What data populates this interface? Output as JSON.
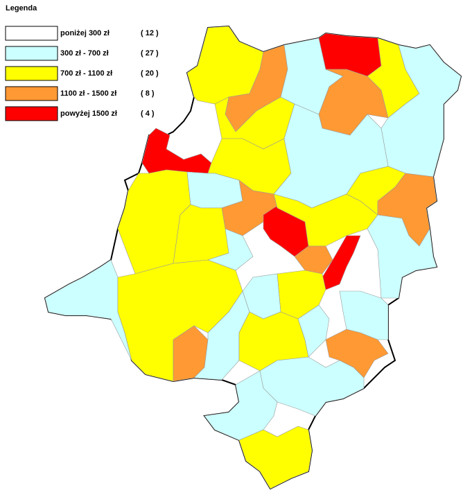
{
  "legend": {
    "title": "Legenda",
    "entries": [
      {
        "label": "poniżej 300 zł",
        "count": "( 12 )",
        "color": "#ffffff"
      },
      {
        "label": "300 zł - 700 zł",
        "count": "( 27 )",
        "color": "#ccffff"
      },
      {
        "label": "700 zł - 1100 zł",
        "count": "( 20 )",
        "color": "#ffff00"
      },
      {
        "label": "1100 zł - 1500 zł",
        "count": "( 8 )",
        "color": "#ff9933"
      },
      {
        "label": "powyżej 1500 zł",
        "count": "( 4 )",
        "color": "#ff0000"
      }
    ]
  }
}
